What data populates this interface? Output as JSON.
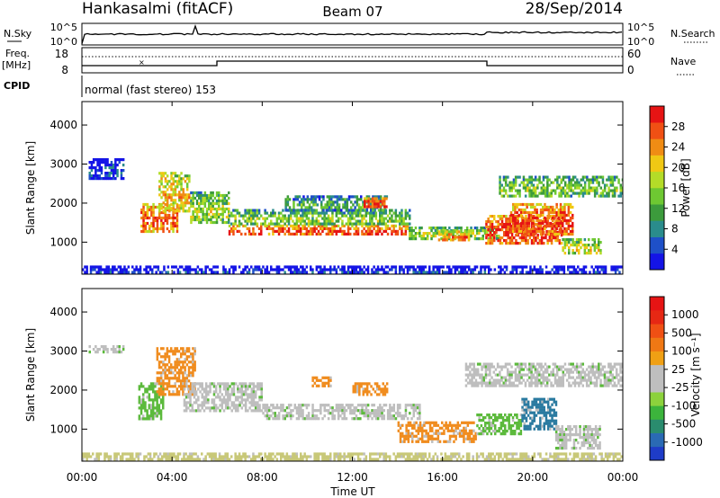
{
  "header": {
    "station": "Hankasalmi (fitACF)",
    "beam": "Beam 07",
    "date": "28/Sep/2014"
  },
  "summary_panels": {
    "nsky_label": "N.Sky",
    "nsky_ticks": [
      "10^5",
      "10^0"
    ],
    "nsearch_label": "N.Search",
    "nsearch_ticks": [
      "10^5",
      "10^0"
    ],
    "freq_label_1": "Freq.",
    "freq_label_2": "[MHz]",
    "freq_ticks": [
      "18",
      "8"
    ],
    "nave_label": "Nave",
    "nave_ticks": [
      "60",
      "0"
    ],
    "cpid_label": "CPID",
    "cpid_text": "normal (fast stereo) 153"
  },
  "chart_data": [
    {
      "type": "heatmap",
      "ylabel": "Slant Range [km]",
      "xlabel": "Time UT",
      "xticks": [
        "00:00",
        "04:00",
        "08:00",
        "12:00",
        "16:00",
        "20:00",
        "00:00"
      ],
      "yticks": [
        "1000",
        "2000",
        "3000",
        "4000"
      ],
      "ylim": [
        180,
        4600
      ],
      "xlim_hours": [
        0,
        24
      ],
      "colorbar_label": "Power [dB]",
      "colorbar_ticks": [
        "4",
        "8",
        "12",
        "16",
        "20",
        "24",
        "28"
      ],
      "colorbar_colors": [
        "#1414e6",
        "#1e50c8",
        "#2a8c8c",
        "#3c9b3c",
        "#6ec832",
        "#b4dc28",
        "#f0c814",
        "#f08c14",
        "#f05014",
        "#e61414"
      ],
      "echo_bands": [
        {
          "t0": 0.3,
          "t1": 1.8,
          "r0": 2650,
          "r1": 3150,
          "level": 0.15
        },
        {
          "t0": 2.6,
          "t1": 4.2,
          "r0": 1300,
          "r1": 2000,
          "level": 0.85
        },
        {
          "t0": 3.4,
          "t1": 4.8,
          "r0": 1800,
          "r1": 2800,
          "level": 0.7
        },
        {
          "t0": 4.8,
          "t1": 6.5,
          "r0": 1500,
          "r1": 2300,
          "level": 0.55
        },
        {
          "t0": 6.5,
          "t1": 14.5,
          "r0": 1200,
          "r1": 1450,
          "level": 0.9
        },
        {
          "t0": 6.5,
          "t1": 14.5,
          "r0": 1450,
          "r1": 1850,
          "level": 0.5
        },
        {
          "t0": 9.0,
          "t1": 13.5,
          "r0": 1850,
          "r1": 2200,
          "level": 0.4
        },
        {
          "t0": 12.5,
          "t1": 13.5,
          "r0": 1900,
          "r1": 2150,
          "level": 0.95
        },
        {
          "t0": 14.5,
          "t1": 18.5,
          "r0": 1100,
          "r1": 1400,
          "level": 0.55
        },
        {
          "t0": 15.8,
          "t1": 17.2,
          "r0": 1050,
          "r1": 1300,
          "level": 0.8
        },
        {
          "t0": 17.9,
          "t1": 21.3,
          "r0": 1000,
          "r1": 1700,
          "level": 0.95
        },
        {
          "t0": 19.0,
          "t1": 21.8,
          "r0": 1200,
          "r1": 2000,
          "level": 0.9
        },
        {
          "t0": 21.3,
          "t1": 23.0,
          "r0": 700,
          "r1": 1100,
          "level": 0.6
        },
        {
          "t0": 18.5,
          "t1": 24.0,
          "r0": 2200,
          "r1": 2700,
          "level": 0.5
        },
        {
          "t0": 0.0,
          "t1": 24.0,
          "r0": 180,
          "r1": 400,
          "level": 0.1
        }
      ]
    },
    {
      "type": "heatmap",
      "ylabel": "Slant Range [km]",
      "xlabel": "Time UT",
      "xticks": [
        "00:00",
        "04:00",
        "08:00",
        "12:00",
        "16:00",
        "20:00",
        "00:00"
      ],
      "yticks": [
        "1000",
        "2000",
        "3000",
        "4000"
      ],
      "ylim": [
        180,
        4600
      ],
      "xlim_hours": [
        0,
        24
      ],
      "colorbar_label": "Velocity [m s⁻¹]",
      "colorbar_ticks": [
        "1000",
        "500",
        "100",
        "25",
        "-25",
        "-100",
        "-500",
        "-1000"
      ],
      "colorbar_colors": [
        "#1e3cc8",
        "#2a6ab4",
        "#2a8c6e",
        "#3cb43c",
        "#8cd23c",
        "#bebebe",
        "#bebebe",
        "#f0a014",
        "#f07814",
        "#f05014",
        "#e62814",
        "#e61414"
      ],
      "echo_bands": [
        {
          "t0": 0.3,
          "t1": 1.8,
          "r0": 2950,
          "r1": 3150,
          "cls": "gray"
        },
        {
          "t0": 2.5,
          "t1": 3.6,
          "r0": 1300,
          "r1": 2200,
          "cls": "green"
        },
        {
          "t0": 3.3,
          "t1": 5.0,
          "r0": 1900,
          "r1": 3100,
          "cls": "orange"
        },
        {
          "t0": 4.5,
          "t1": 8.0,
          "r0": 1500,
          "r1": 2200,
          "cls": "gray"
        },
        {
          "t0": 8.0,
          "t1": 15.0,
          "r0": 1250,
          "r1": 1650,
          "cls": "gray"
        },
        {
          "t0": 10.2,
          "t1": 11.0,
          "r0": 2100,
          "r1": 2350,
          "cls": "orange"
        },
        {
          "t0": 12.0,
          "t1": 13.5,
          "r0": 1900,
          "r1": 2200,
          "cls": "orange"
        },
        {
          "t0": 14.0,
          "t1": 17.5,
          "r0": 700,
          "r1": 1200,
          "cls": "orange"
        },
        {
          "t0": 17.5,
          "t1": 19.5,
          "r0": 900,
          "r1": 1400,
          "cls": "green"
        },
        {
          "t0": 19.5,
          "t1": 21.0,
          "r0": 1000,
          "r1": 1800,
          "cls": "blue"
        },
        {
          "t0": 17.0,
          "t1": 24.0,
          "r0": 2100,
          "r1": 2700,
          "cls": "gray"
        },
        {
          "t0": 21.0,
          "t1": 23.0,
          "r0": 500,
          "r1": 1100,
          "cls": "gray"
        },
        {
          "t0": 0.0,
          "t1": 24.0,
          "r0": 180,
          "r1": 400,
          "cls": "yellow"
        }
      ]
    }
  ]
}
